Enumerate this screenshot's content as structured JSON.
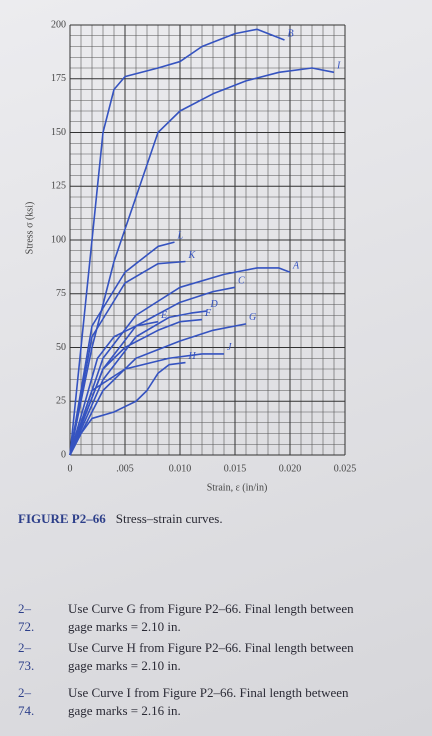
{
  "chart_data": {
    "type": "line",
    "xlabel": "Strain, ε (in/in)",
    "ylabel": "Stress σ (ksi)",
    "xlim": [
      0,
      0.025
    ],
    "ylim": [
      0,
      200
    ],
    "xticks": [
      0,
      {
        "value": 0.005,
        "label": ".005"
      },
      {
        "value": 0.01,
        "label": "0.010"
      },
      {
        "value": 0.015,
        "label": "0.015"
      },
      {
        "value": 0.02,
        "label": "0.020"
      },
      {
        "value": 0.025,
        "label": "0.025"
      }
    ],
    "yticks": [
      0,
      25,
      50,
      75,
      100,
      125,
      150,
      175,
      200
    ],
    "grid": true,
    "series": [
      {
        "name": "B",
        "color": "#3553c0",
        "x": [
          0,
          0.001,
          0.002,
          0.003,
          0.004,
          0.005,
          0.008,
          0.01,
          0.012,
          0.015,
          0.017,
          0.0195
        ],
        "values": [
          0,
          50,
          100,
          150,
          170,
          176,
          180,
          183,
          190,
          196,
          198,
          193
        ]
      },
      {
        "name": "I",
        "color": "#3553c0",
        "x": [
          0,
          0.002,
          0.004,
          0.006,
          0.008,
          0.01,
          0.013,
          0.016,
          0.019,
          0.022,
          0.024
        ],
        "values": [
          0,
          50,
          90,
          120,
          150,
          160,
          168,
          174,
          178,
          180,
          178
        ]
      },
      {
        "name": "L",
        "color": "#3553c0",
        "x": [
          0,
          0.002,
          0.005,
          0.008,
          0.0095
        ],
        "values": [
          0,
          60,
          85,
          97,
          99
        ]
      },
      {
        "name": "K",
        "color": "#3553c0",
        "x": [
          0,
          0.002,
          0.005,
          0.008,
          0.0105
        ],
        "values": [
          0,
          55,
          80,
          89,
          90
        ]
      },
      {
        "name": "A",
        "color": "#3553c0",
        "x": [
          0,
          0.003,
          0.006,
          0.01,
          0.014,
          0.017,
          0.019,
          0.02
        ],
        "values": [
          0,
          45,
          65,
          78,
          84,
          87,
          87,
          85
        ]
      },
      {
        "name": "C",
        "color": "#3553c0",
        "x": [
          0,
          0.003,
          0.006,
          0.01,
          0.013,
          0.015
        ],
        "values": [
          0,
          40,
          60,
          71,
          76,
          78
        ]
      },
      {
        "name": "D",
        "color": "#3553c0",
        "x": [
          0,
          0.003,
          0.006,
          0.009,
          0.011,
          0.0125
        ],
        "values": [
          0,
          35,
          55,
          64,
          66,
          67
        ]
      },
      {
        "name": "E",
        "color": "#3553c0",
        "x": [
          0,
          0.0025,
          0.004,
          0.006,
          0.008
        ],
        "values": [
          0,
          45,
          55,
          60,
          62
        ]
      },
      {
        "name": "F",
        "color": "#3553c0",
        "x": [
          0,
          0.003,
          0.005,
          0.008,
          0.01,
          0.012
        ],
        "values": [
          0,
          40,
          50,
          58,
          62,
          63
        ]
      },
      {
        "name": "G",
        "color": "#3553c0",
        "x": [
          0,
          0.003,
          0.006,
          0.01,
          0.013,
          0.016
        ],
        "values": [
          0,
          30,
          45,
          53,
          58,
          61
        ]
      },
      {
        "name": "J",
        "color": "#3553c0",
        "x": [
          0,
          0.002,
          0.005,
          0.009,
          0.012,
          0.014
        ],
        "values": [
          0,
          30,
          40,
          45,
          47,
          47
        ]
      },
      {
        "name": "H",
        "color": "#3553c0",
        "x": [
          0,
          0.001,
          0.002,
          0.004,
          0.006,
          0.007,
          0.008,
          0.009,
          0.0105
        ],
        "values": [
          0,
          10,
          17,
          20,
          25,
          30,
          38,
          42,
          43
        ]
      }
    ]
  },
  "caption": {
    "label": "FIGURE P2–66",
    "text": "Stress–strain curves."
  },
  "problems": [
    {
      "number": "2–72.",
      "lines": [
        "Use Curve G from Figure P2–66. Final length between",
        "gage marks = 2.10 in."
      ]
    },
    {
      "number": "2–73.",
      "lines": [
        "Use Curve H from Figure P2–66. Final length between",
        "gage marks = 2.10 in."
      ]
    },
    {
      "number": "2–74.",
      "lines": [
        "Use Curve I from Figure P2–66. Final length between",
        "gage marks = 2.16 in."
      ]
    }
  ]
}
